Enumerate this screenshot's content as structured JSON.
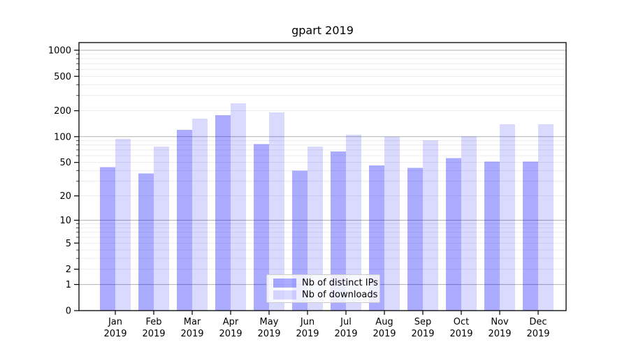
{
  "chart_data": {
    "type": "bar",
    "title": "gpart 2019",
    "categories": [
      "Jan\n2019",
      "Feb\n2019",
      "Mar\n2019",
      "Apr\n2019",
      "May\n2019",
      "Jun\n2019",
      "Jul\n2019",
      "Aug\n2019",
      "Sep\n2019",
      "Oct\n2019",
      "Nov\n2019",
      "Dec\n2019"
    ],
    "series": [
      {
        "name": "Nb of distinct IPs",
        "fill": "rgba(0,0,255,0.33)",
        "approx_hex": "#aaaaf8",
        "values": [
          44,
          37,
          120,
          178,
          82,
          40,
          67,
          46,
          43,
          56,
          51,
          51
        ]
      },
      {
        "name": "Nb of downloads",
        "fill": "rgba(0,0,255,0.145)",
        "approx_hex": "#dadafa",
        "values": [
          94,
          77,
          162,
          243,
          191,
          77,
          105,
          100,
          91,
          101,
          140,
          140
        ]
      }
    ],
    "xlabel": "",
    "ylabel": "",
    "yscale": "log1p",
    "ylim": [
      0,
      1225
    ],
    "yticks": [
      0,
      1,
      2,
      5,
      10,
      20,
      50,
      100,
      200,
      500,
      1000
    ],
    "grid": true,
    "grid_major_color": "#b0b0b0",
    "grid_minor_color": "#e8e8e8",
    "axis_color": "#000000",
    "legend_position": "lower center",
    "legend_border_color": "#cccccc"
  }
}
